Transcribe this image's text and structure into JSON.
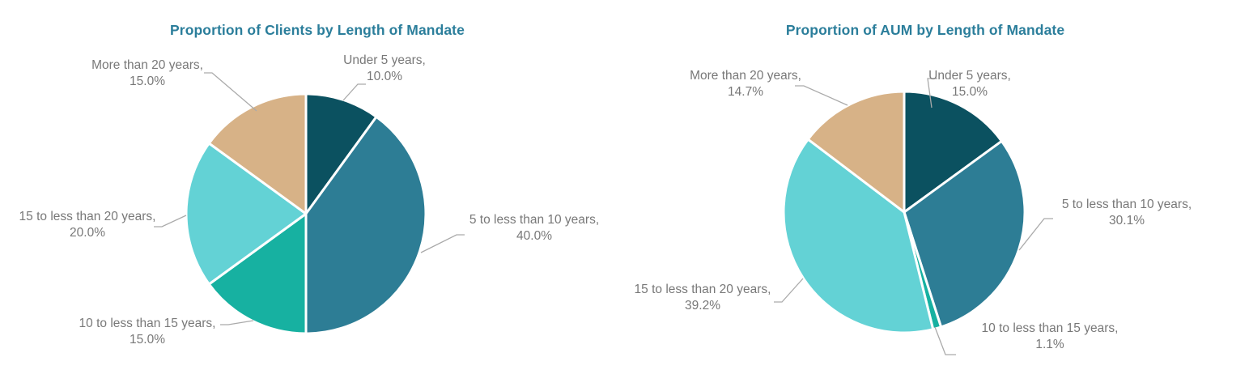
{
  "figure": {
    "background": "#ffffff",
    "title_color": "#2b7e9b",
    "label_text_color": "#787878",
    "leader_line_color": "#aaaaaa"
  },
  "chart_data": [
    {
      "type": "pie",
      "title": "Proportion of Clients by Length of Mandate",
      "categories": [
        "Under 5 years",
        "5 to less than 10 years",
        "10 to less than 15 years",
        "15 to less than 20 years",
        "More than 20 years"
      ],
      "values": [
        10.0,
        40.0,
        15.0,
        20.0,
        15.0
      ],
      "colors": [
        "#0b5160",
        "#2d7d95",
        "#17b1a1",
        "#63d2d5",
        "#d7b287"
      ],
      "labels": [
        {
          "text": "Under 5 years,",
          "pct": "10.0%"
        },
        {
          "text": "5 to less than 10 years,",
          "pct": "40.0%"
        },
        {
          "text": "10 to less than 15 years,",
          "pct": "15.0%"
        },
        {
          "text": "15 to less than 20 years,",
          "pct": "20.0%"
        },
        {
          "text": "More than 20 years,",
          "pct": "15.0%"
        }
      ],
      "start_angle_deg": 0,
      "direction": "clockwise",
      "legend": "none",
      "slice_border_color": "#ffffff"
    },
    {
      "type": "pie",
      "title": "Proportion of AUM by Length of Mandate",
      "categories": [
        "Under 5 years",
        "5 to less than 10 years",
        "10 to less than 15 years",
        "15 to less than 20 years",
        "More than 20 years"
      ],
      "values": [
        15.0,
        30.1,
        1.1,
        39.2,
        14.7
      ],
      "colors": [
        "#0b5160",
        "#2d7d95",
        "#17b1a1",
        "#63d2d5",
        "#d7b287"
      ],
      "labels": [
        {
          "text": "Under 5 years,",
          "pct": "15.0%"
        },
        {
          "text": "5 to less than 10 years,",
          "pct": "30.1%"
        },
        {
          "text": "10 to less than 15 years,",
          "pct": "1.1%"
        },
        {
          "text": "15 to less than 20 years,",
          "pct": "39.2%"
        },
        {
          "text": "More than 20 years,",
          "pct": "14.7%"
        }
      ],
      "start_angle_deg": 0,
      "direction": "clockwise",
      "legend": "none",
      "slice_border_color": "#ffffff"
    }
  ]
}
